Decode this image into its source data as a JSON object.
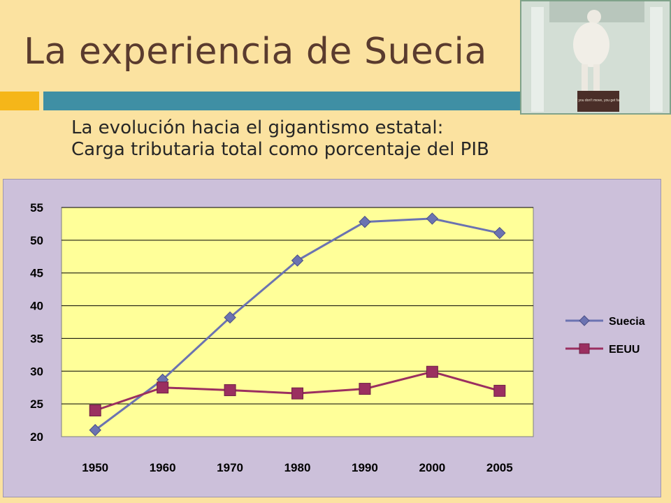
{
  "slide": {
    "title": "La experiencia de Suecia",
    "subtitle_line1": "La evolución hacia el gigantismo estatal:",
    "subtitle_line2": "Carga tributaria total como porcentaje del PIB",
    "image_caption": "If you don't move, you get fat."
  },
  "colors": {
    "background": "#FBE2A0",
    "accent_teal": "#3F8FA4",
    "accent_gold": "#F5B619",
    "plot_area": "#FFFF99",
    "chart_panel": "#CCC0DA",
    "suecia": "#6B73B1",
    "eeuu": "#9B2F60"
  },
  "chart_data": {
    "type": "line",
    "categories": [
      "1950",
      "1960",
      "1970",
      "1980",
      "1990",
      "2000",
      "2005"
    ],
    "series": [
      {
        "name": "Suecia",
        "marker": "diamond",
        "values": [
          21,
          28.7,
          38.2,
          46.9,
          52.8,
          53.3,
          51.1
        ]
      },
      {
        "name": "EEUU",
        "marker": "square",
        "values": [
          24,
          27.5,
          27.1,
          26.6,
          27.3,
          29.9,
          27.0
        ]
      }
    ],
    "ylim": [
      20,
      55
    ],
    "yticks": [
      "20",
      "25",
      "30",
      "35",
      "40",
      "45",
      "50",
      "55"
    ],
    "grid": true,
    "legend_position": "right"
  }
}
